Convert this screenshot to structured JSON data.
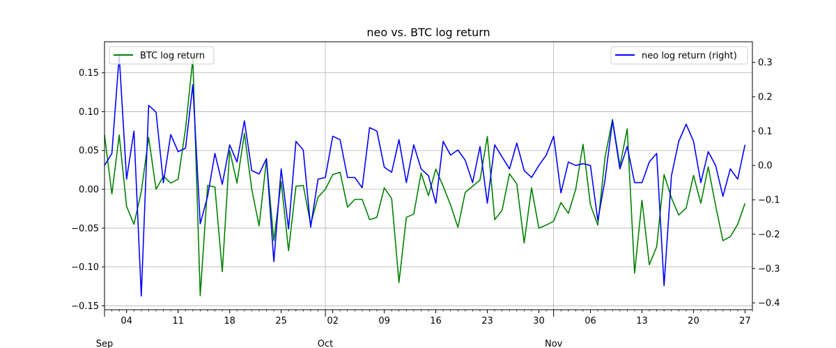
{
  "chart_data": {
    "type": "line",
    "title": "neo vs. BTC log return",
    "xlabel": "",
    "ylabel": "",
    "ylim_left": [
      -0.155,
      0.19
    ],
    "ylim_right": [
      -0.42,
      0.36
    ],
    "grid": true,
    "x_start": "2017-09-01",
    "x_end": "2017-11-28",
    "x_major_ticks": [
      {
        "date": "2017-09-04",
        "label": "04"
      },
      {
        "date": "2017-09-11",
        "label": "11"
      },
      {
        "date": "2017-09-18",
        "label": "18"
      },
      {
        "date": "2017-09-25",
        "label": "25"
      },
      {
        "date": "2017-10-02",
        "label": "02"
      },
      {
        "date": "2017-10-09",
        "label": "09"
      },
      {
        "date": "2017-10-16",
        "label": "16"
      },
      {
        "date": "2017-10-23",
        "label": "23"
      },
      {
        "date": "2017-10-30",
        "label": "30"
      },
      {
        "date": "2017-11-06",
        "label": "06"
      },
      {
        "date": "2017-11-13",
        "label": "13"
      },
      {
        "date": "2017-11-20",
        "label": "20"
      },
      {
        "date": "2017-11-27",
        "label": "27"
      }
    ],
    "x_month_ticks": [
      {
        "date": "2017-09-01",
        "label": "Sep"
      },
      {
        "date": "2017-10-01",
        "label": "Oct"
      },
      {
        "date": "2017-11-01",
        "label": "Nov"
      }
    ],
    "y_left_ticks": [
      {
        "value": 0.15,
        "label": "0.15"
      },
      {
        "value": 0.1,
        "label": "0.10"
      },
      {
        "value": 0.05,
        "label": "0.05"
      },
      {
        "value": 0.0,
        "label": "0.00"
      },
      {
        "value": -0.05,
        "label": "−0.05"
      },
      {
        "value": -0.1,
        "label": "−0.10"
      },
      {
        "value": -0.15,
        "label": "−0.15"
      }
    ],
    "y_right_ticks": [
      {
        "value": 0.3,
        "label": "0.3"
      },
      {
        "value": 0.2,
        "label": "0.2"
      },
      {
        "value": 0.1,
        "label": "0.1"
      },
      {
        "value": 0.0,
        "label": "0.0"
      },
      {
        "value": -0.1,
        "label": "−0.1"
      },
      {
        "value": -0.2,
        "label": "−0.2"
      },
      {
        "value": -0.3,
        "label": "−0.3"
      },
      {
        "value": -0.4,
        "label": "−0.4"
      }
    ],
    "legend_left": {
      "placement": "upper left"
    },
    "legend_right": {
      "placement": "upper right"
    },
    "series": [
      {
        "name": "BTC log return",
        "axis": "left",
        "color": "#008000",
        "values": [
          0.07,
          -0.006,
          0.07,
          -0.022,
          -0.045,
          -0.003,
          0.067,
          0.0,
          0.017,
          0.008,
          0.013,
          0.078,
          0.168,
          -0.137,
          0.005,
          0.003,
          -0.106,
          0.05,
          0.008,
          0.072,
          0.0,
          -0.047,
          0.038,
          -0.066,
          0.01,
          -0.079,
          0.004,
          0.005,
          -0.045,
          -0.01,
          0.0,
          0.019,
          0.022,
          -0.023,
          -0.013,
          -0.013,
          -0.039,
          -0.036,
          0.002,
          -0.012,
          -0.12,
          -0.036,
          -0.032,
          0.021,
          -0.008,
          0.026,
          0.004,
          -0.02,
          -0.049,
          -0.004,
          0.004,
          0.012,
          0.068,
          -0.039,
          -0.027,
          0.02,
          0.007,
          -0.069,
          0.002,
          -0.05,
          -0.046,
          -0.041,
          -0.017,
          -0.031,
          0.0,
          0.058,
          -0.02,
          -0.046,
          0.042,
          0.09,
          0.03,
          0.078,
          -0.108,
          -0.014,
          -0.097,
          -0.074,
          0.019,
          -0.011,
          -0.033,
          -0.024,
          0.018,
          -0.018,
          0.029,
          -0.021,
          -0.066,
          -0.061,
          -0.045,
          -0.018
        ]
      },
      {
        "name": "neo log return (right)",
        "axis": "right",
        "color": "#0000ff",
        "values": [
          0.0,
          0.035,
          0.32,
          -0.04,
          0.1,
          -0.38,
          0.175,
          0.155,
          -0.05,
          0.09,
          0.04,
          0.05,
          0.235,
          -0.17,
          -0.09,
          0.035,
          -0.055,
          0.06,
          0.01,
          0.13,
          -0.015,
          -0.025,
          0.02,
          -0.28,
          -0.01,
          -0.185,
          0.07,
          0.045,
          -0.18,
          -0.04,
          -0.035,
          0.085,
          0.075,
          -0.035,
          -0.035,
          -0.065,
          0.11,
          0.1,
          -0.005,
          -0.02,
          0.075,
          -0.05,
          0.06,
          -0.01,
          -0.03,
          -0.11,
          0.07,
          0.03,
          0.045,
          0.015,
          -0.05,
          0.055,
          -0.11,
          0.06,
          0.025,
          -0.01,
          0.065,
          -0.015,
          -0.035,
          0.0,
          0.03,
          0.085,
          -0.08,
          0.01,
          0.0,
          0.005,
          0.0,
          -0.16,
          -0.04,
          0.13,
          -0.01,
          0.055,
          -0.05,
          -0.05,
          0.01,
          0.035,
          -0.35,
          -0.03,
          0.07,
          0.12,
          0.07,
          -0.05,
          0.04,
          0.0,
          -0.09,
          -0.01,
          -0.04,
          0.06
        ]
      }
    ]
  }
}
